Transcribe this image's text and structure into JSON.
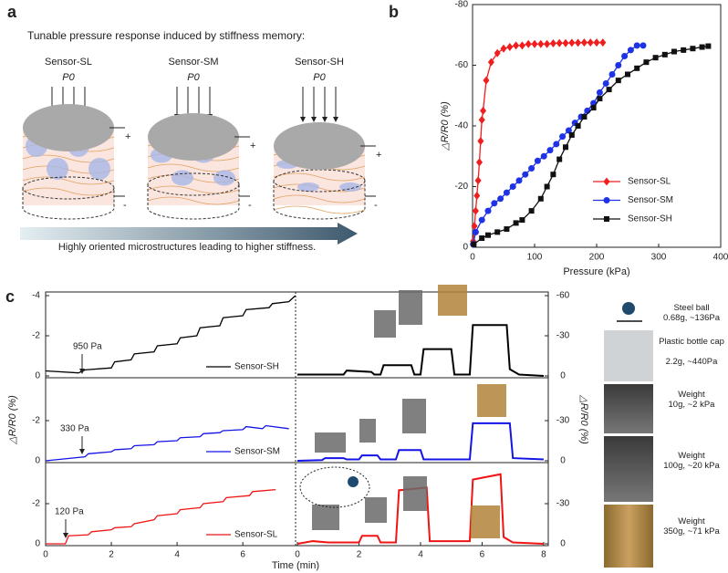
{
  "panel_a": {
    "label": "a",
    "title": "Tunable pressure response induced by stiffness memory:",
    "sensors": [
      {
        "name": "Sensor-SL",
        "pressure": "P0",
        "plus": "+",
        "minus": "-"
      },
      {
        "name": "Sensor-SM",
        "pressure": "P0",
        "plus": "+",
        "minus": "-"
      },
      {
        "name": "Sensor-SH",
        "pressure": "P0",
        "plus": "+",
        "minus": "-"
      }
    ],
    "caption": "Highly oriented microstructures leading to higher stiffness."
  },
  "chart_data": [
    {
      "type": "scatter",
      "panel_label": "b",
      "xlabel": "Pressure (kPa)",
      "ylabel": "△R/R0 (%)",
      "xlim": [
        0,
        400
      ],
      "xticks": [
        0,
        100,
        200,
        300,
        400
      ],
      "ylim": [
        0,
        -80
      ],
      "yticks": [
        0,
        -20,
        -40,
        -60,
        -80
      ],
      "series": [
        {
          "name": "Sensor-SL",
          "color": "#f01e1e",
          "marker": "diamond",
          "x": [
            1,
            3,
            5,
            7,
            9,
            11,
            13,
            15,
            17,
            22,
            30,
            40,
            50,
            60,
            70,
            80,
            90,
            100,
            110,
            120,
            130,
            140,
            150,
            160,
            170,
            180,
            190,
            200,
            210
          ],
          "values": [
            -2,
            -7,
            -12,
            -17,
            -22,
            -28,
            -35,
            -42,
            -45,
            -55,
            -61,
            -64,
            -65.5,
            -66,
            -66.5,
            -66.5,
            -67,
            -67,
            -67,
            -67,
            -67.2,
            -67.3,
            -67.3,
            -67.4,
            -67.4,
            -67.5,
            -67.5,
            -67.5,
            -67.5
          ]
        },
        {
          "name": "Sensor-SM",
          "color": "#1e32e6",
          "marker": "circle",
          "x": [
            1,
            5,
            15,
            25,
            35,
            45,
            55,
            65,
            75,
            85,
            95,
            105,
            115,
            125,
            135,
            145,
            155,
            165,
            175,
            185,
            195,
            205,
            215,
            225,
            235,
            245,
            255,
            265,
            275
          ],
          "values": [
            -1,
            -5,
            -9,
            -12,
            -14.5,
            -16,
            -18,
            -20,
            -22,
            -24,
            -26,
            -28.5,
            -30,
            -32,
            -34,
            -36.5,
            -38.5,
            -41,
            -43,
            -45,
            -47.5,
            -51,
            -54,
            -57,
            -60,
            -63,
            -65,
            -66.5,
            -66.5
          ]
        },
        {
          "name": "Sensor-SH",
          "color": "#111111",
          "marker": "square",
          "x": [
            2,
            15,
            25,
            40,
            55,
            70,
            80,
            95,
            110,
            120,
            130,
            140,
            150,
            160,
            170,
            180,
            195,
            205,
            220,
            235,
            250,
            265,
            280,
            295,
            310,
            325,
            340,
            355,
            370,
            380
          ],
          "values": [
            -1,
            -3,
            -4,
            -5,
            -6,
            -8,
            -9,
            -12,
            -16,
            -20,
            -24,
            -29,
            -33,
            -37,
            -40,
            -43,
            -46,
            -49,
            -52,
            -55,
            -57,
            -59,
            -61,
            -62.5,
            -63.5,
            -64.5,
            -65,
            -65.5,
            -66,
            -66.3
          ]
        }
      ]
    },
    {
      "type": "line",
      "panel_label": "c",
      "xlabel": "Time (min)",
      "ylabel": "△R/R0 (%)",
      "y2label": "△R/R0 (%)",
      "xlim": [
        0,
        7.55
      ],
      "xticks": [
        0,
        2,
        4,
        6
      ],
      "x2lim": [
        0,
        8.15
      ],
      "x2ticks": [
        0,
        2,
        4,
        6,
        8
      ],
      "ylim": [
        0,
        -4
      ],
      "y2lim": [
        0,
        -60
      ],
      "panels": [
        {
          "name": "Sensor-SH",
          "color": "#000000",
          "annotation": "950 Pa",
          "yticks": [
            0,
            -2,
            -4
          ],
          "y2ticks": [
            0,
            -30,
            -60
          ],
          "series": [
            {
              "x": [
                0,
                1,
                1.2,
                2,
                2.1,
                2.6,
                2.7,
                3.3,
                3.4,
                4,
                4.1,
                4.6,
                4.7,
                5.3,
                5.4,
                6.0,
                6.1,
                6.8,
                6.9,
                7.4,
                7.6
              ],
              "values": [
                -0.25,
                -0.15,
                -0.3,
                -0.4,
                -0.7,
                -0.8,
                -1.1,
                -1.2,
                -1.5,
                -1.6,
                -1.9,
                -2.0,
                -2.4,
                -2.5,
                -2.9,
                -3.0,
                -3.3,
                -3.4,
                -3.6,
                -3.7,
                -4.0
              ]
            },
            {
              "axis": "y2",
              "x": [
                0,
                1.5,
                1.6,
                2.4,
                2.5,
                2.7,
                2.8,
                3.7,
                3.8,
                4.0,
                4.1,
                5.0,
                5.1,
                5.6,
                5.7,
                6.8,
                6.9,
                7.2,
                8
              ],
              "values": [
                -1,
                -1,
                -4,
                -3,
                -1,
                -1,
                -8,
                -8,
                -1,
                -1,
                -20,
                -20,
                -1,
                -1,
                -38,
                -38,
                -5,
                -1,
                0
              ]
            }
          ]
        },
        {
          "name": "Sensor-SM",
          "color": "#1414e6",
          "annotation": "330 Pa",
          "yticks": [
            0,
            -2
          ],
          "y2ticks": [
            0,
            -30
          ],
          "series": [
            {
              "x": [
                0,
                1.2,
                1.3,
                2,
                2.1,
                2.6,
                2.7,
                3.3,
                3.4,
                4,
                4.1,
                4.7,
                4.8,
                5.3,
                5.4,
                6.0,
                6.1,
                6.6,
                6.7,
                7.4
              ],
              "values": [
                0,
                -0.2,
                -0.35,
                -0.45,
                -0.55,
                -0.6,
                -0.75,
                -0.8,
                -0.95,
                -1.0,
                -1.15,
                -1.2,
                -1.35,
                -1.4,
                -1.5,
                -1.55,
                -1.7,
                -1.6,
                -1.75,
                -1.6
              ]
            },
            {
              "axis": "y2",
              "x": [
                0,
                0.8,
                0.9,
                1.5,
                1.6,
                2,
                2.1,
                2.6,
                2.7,
                3.2,
                3.3,
                4.0,
                4.1,
                5.6,
                5.7,
                6.9,
                7.0,
                8
              ],
              "values": [
                0,
                -0.5,
                -2,
                -2,
                -1,
                -1,
                -4,
                -4,
                -1,
                -1,
                -8,
                -8,
                -1,
                -1,
                -28,
                -28,
                -2,
                -1
              ]
            }
          ]
        },
        {
          "name": "Sensor-SL",
          "color": "#f01414",
          "annotation": "120 Pa",
          "yticks": [
            0,
            -2
          ],
          "y2ticks": [
            0,
            -30
          ],
          "series": [
            {
              "x": [
                0,
                0.6,
                0.7,
                1.3,
                1.4,
                2,
                2.1,
                2.6,
                2.7,
                3.3,
                3.4,
                4,
                4.1,
                4.7,
                4.8,
                5.4,
                5.5,
                6.2,
                6.3,
                7.0
              ],
              "values": [
                0,
                0,
                -0.4,
                -0.45,
                -0.6,
                -0.7,
                -0.8,
                -0.85,
                -1.0,
                -1.2,
                -1.4,
                -1.5,
                -1.7,
                -1.8,
                -2.0,
                -2.1,
                -2.3,
                -2.4,
                -2.6,
                -2.7
              ]
            },
            {
              "axis": "y2",
              "x": [
                0,
                0.5,
                1.0,
                2.0,
                2.1,
                2.6,
                2.7,
                3.2,
                3.3,
                4.2,
                4.3,
                5.6,
                5.7,
                6.6,
                6.7,
                7,
                8
              ],
              "values": [
                0,
                -2,
                -1,
                -1,
                -6,
                -6,
                -1,
                -1,
                -40,
                -42,
                -2,
                -2,
                -48,
                -52,
                -5,
                -1,
                0
              ]
            }
          ]
        }
      ],
      "samples": [
        {
          "name": "Steel ball",
          "spec": "0.68g, ~136Pa"
        },
        {
          "name": "Plastic bottle cap",
          "spec": "2.2g, ~440Pa"
        },
        {
          "name": "Weight",
          "spec": "10g, ~2 kPa"
        },
        {
          "name": "Weight",
          "spec": "100g, ~20 kPa"
        },
        {
          "name": "Weight",
          "spec": "350g, ~71 kPa"
        }
      ]
    }
  ]
}
